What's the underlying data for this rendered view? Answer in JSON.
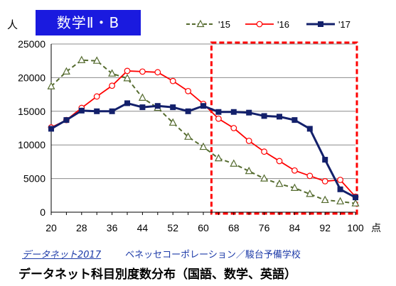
{
  "header": {
    "unit": "人",
    "subject": "数学Ⅱ・B"
  },
  "footer": {
    "source": "データネット2017",
    "publisher": "ベネッセコーポレーション／駿台予備学校",
    "title": "データネット科目別度数分布（国語、数学、英語）"
  },
  "chart_data": {
    "type": "line",
    "x_unit_label": "点",
    "x_tick_labels": [
      "20",
      "28",
      "36",
      "44",
      "52",
      "60",
      "68",
      "76",
      "84",
      "92",
      "100"
    ],
    "xlim": [
      20,
      100
    ],
    "ylim": [
      0,
      25000
    ],
    "y_ticks": [
      0,
      5000,
      10000,
      15000,
      20000,
      25000
    ],
    "grid": "horizontal",
    "legend_position": "top",
    "highlight_range": [
      64,
      100
    ],
    "x": [
      20,
      24,
      28,
      32,
      36,
      40,
      44,
      48,
      52,
      56,
      60,
      64,
      68,
      72,
      76,
      80,
      84,
      88,
      92,
      96,
      100
    ],
    "series": [
      {
        "name": "'15",
        "color": "#556b2f",
        "marker": "triangle",
        "dashed": true,
        "values": [
          18700,
          20900,
          22600,
          22500,
          20600,
          19900,
          17000,
          15500,
          13300,
          11200,
          9700,
          8000,
          7200,
          6100,
          5000,
          4200,
          3600,
          2700,
          1800,
          1600,
          1300
        ]
      },
      {
        "name": "'16",
        "color": "#ff0000",
        "marker": "circle",
        "dashed": false,
        "values": [
          12600,
          13700,
          15500,
          17200,
          18800,
          21000,
          20900,
          20800,
          19500,
          18000,
          16100,
          13900,
          12500,
          10600,
          9000,
          7600,
          6200,
          5400,
          4600,
          4800,
          2300
        ]
      },
      {
        "name": "'17",
        "color": "#13206b",
        "marker": "square",
        "dashed": false,
        "values": [
          12400,
          13700,
          15100,
          15000,
          15000,
          16200,
          15600,
          15800,
          15600,
          15000,
          15800,
          14900,
          14900,
          14800,
          14300,
          14200,
          13700,
          12400,
          7800,
          3400,
          2200
        ]
      }
    ]
  }
}
